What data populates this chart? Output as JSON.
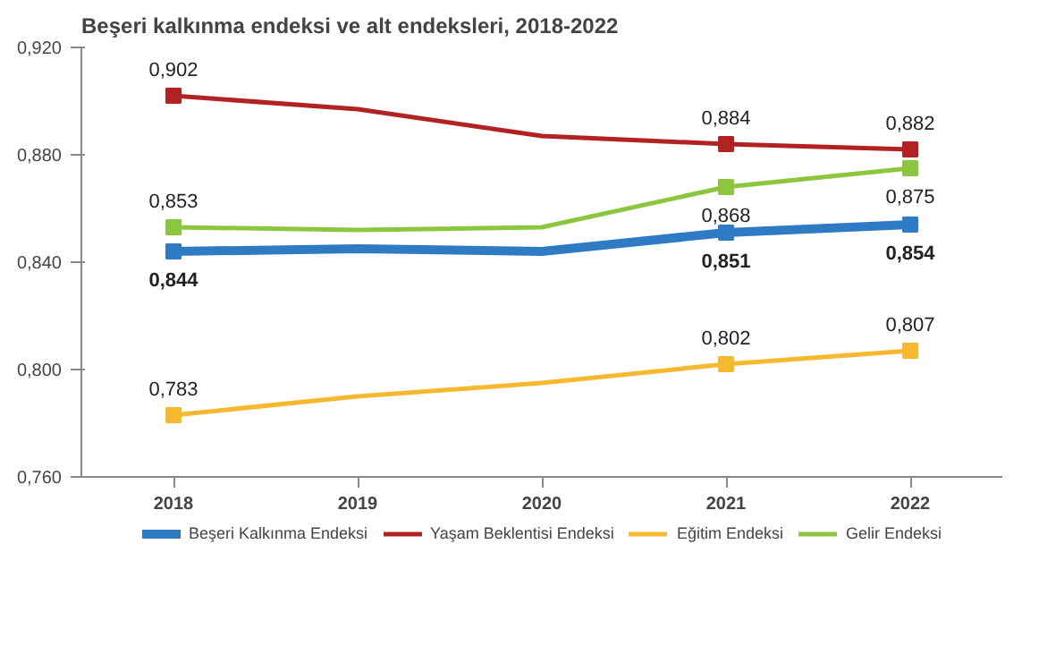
{
  "chart_data": {
    "type": "line",
    "title": "Beşeri kalkınma endeksi ve alt endeksleri, 2018-2022",
    "categories": [
      "2018",
      "2019",
      "2020",
      "2021",
      "2022"
    ],
    "series": [
      {
        "name": "Beşeri Kalkınma Endeksi",
        "color": "#2e7bc4",
        "values": [
          0.844,
          0.845,
          0.844,
          0.851,
          0.854
        ],
        "value_labels": [
          "0,844",
          null,
          null,
          "0,851",
          "0,854"
        ]
      },
      {
        "name": "Yaşam Beklentisi Endeksi",
        "color": "#b22222",
        "values": [
          0.902,
          0.897,
          0.887,
          0.884,
          0.882
        ],
        "value_labels": [
          "0,902",
          null,
          null,
          "0,884",
          "0,882"
        ]
      },
      {
        "name": "Eğitim Endeksi",
        "color": "#f5b82e",
        "values": [
          0.783,
          0.79,
          0.795,
          0.802,
          0.807
        ],
        "value_labels": [
          "0,783",
          null,
          null,
          "0,802",
          "0,807"
        ]
      },
      {
        "name": "Gelir Endeksi",
        "color": "#8cc63e",
        "values": [
          0.853,
          0.852,
          0.853,
          0.868,
          0.875
        ],
        "value_labels": [
          "0,853",
          null,
          null,
          "0,868",
          "0,875"
        ]
      }
    ],
    "ylim": [
      0.76,
      0.92
    ],
    "yticks": [
      {
        "value": 0.76,
        "label": "0,760"
      },
      {
        "value": 0.8,
        "label": "0,800"
      },
      {
        "value": 0.84,
        "label": "0,840"
      },
      {
        "value": 0.88,
        "label": "0,880"
      },
      {
        "value": 0.92,
        "label": "0,920"
      }
    ],
    "marker": "square",
    "line_style": "solid",
    "grid": false,
    "legend": "bottom"
  }
}
